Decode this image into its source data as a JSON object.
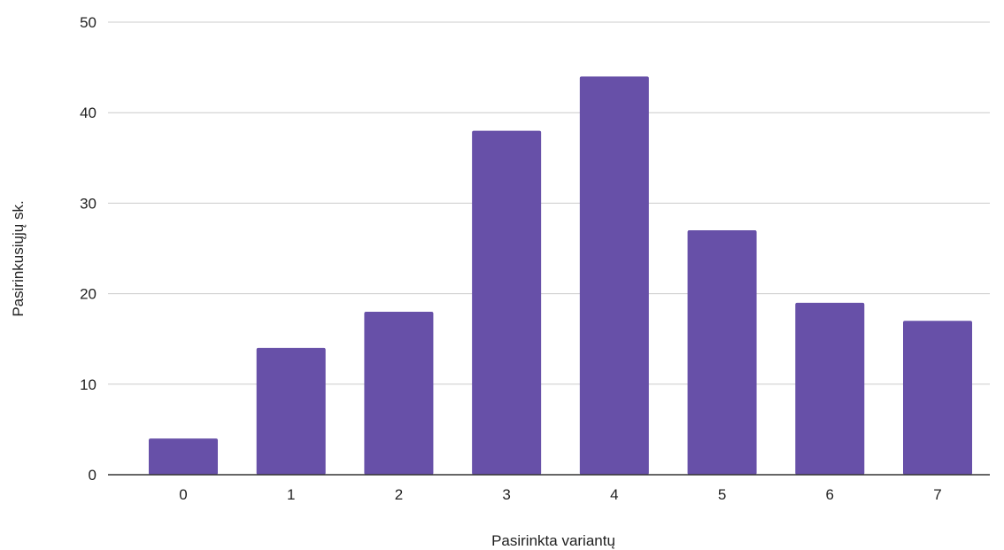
{
  "chart_data": {
    "type": "bar",
    "title": "",
    "xlabel": "Pasirinkta variantų",
    "ylabel": "Pasirinkusiųjų sk.",
    "categories": [
      "0",
      "1",
      "2",
      "3",
      "4",
      "5",
      "6",
      "7"
    ],
    "values": [
      4,
      14,
      18,
      38,
      44,
      27,
      19,
      17
    ],
    "ylim": [
      0,
      50
    ],
    "yticks": [
      0,
      10,
      20,
      30,
      40,
      50
    ],
    "grid": true,
    "legend": "none",
    "bar_color": "#6750a8"
  }
}
